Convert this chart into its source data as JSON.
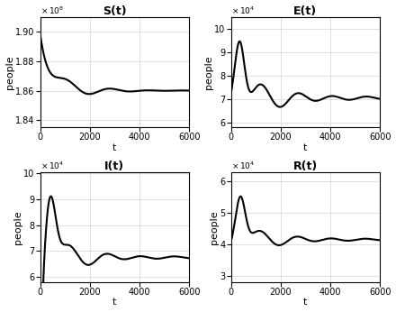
{
  "title_S": "S(t)",
  "title_E": "E(t)",
  "title_I": "I(t)",
  "title_R": "R(t)",
  "xlabel": "t",
  "ylabel": "people",
  "xlim": [
    0,
    6000
  ],
  "line_color": "#000000",
  "line_width": 1.5,
  "grid_color": "#d3d3d3",
  "bg_color": "#ffffff",
  "xticks": [
    0,
    2000,
    4000,
    6000
  ],
  "S_yticks": [
    1.84,
    1.86,
    1.88,
    1.9
  ],
  "S_ylim": [
    183500000.0,
    191000000.0
  ],
  "E_yticks": [
    6,
    7,
    8,
    9,
    10
  ],
  "E_ylim": [
    58000.0,
    105000.0
  ],
  "I_yticks": [
    6,
    7,
    8,
    9,
    10
  ],
  "I_ylim": [
    58000.0,
    100500.0
  ],
  "R_yticks": [
    3,
    4,
    5,
    6
  ],
  "R_ylim": [
    28000.0,
    63000.0
  ]
}
